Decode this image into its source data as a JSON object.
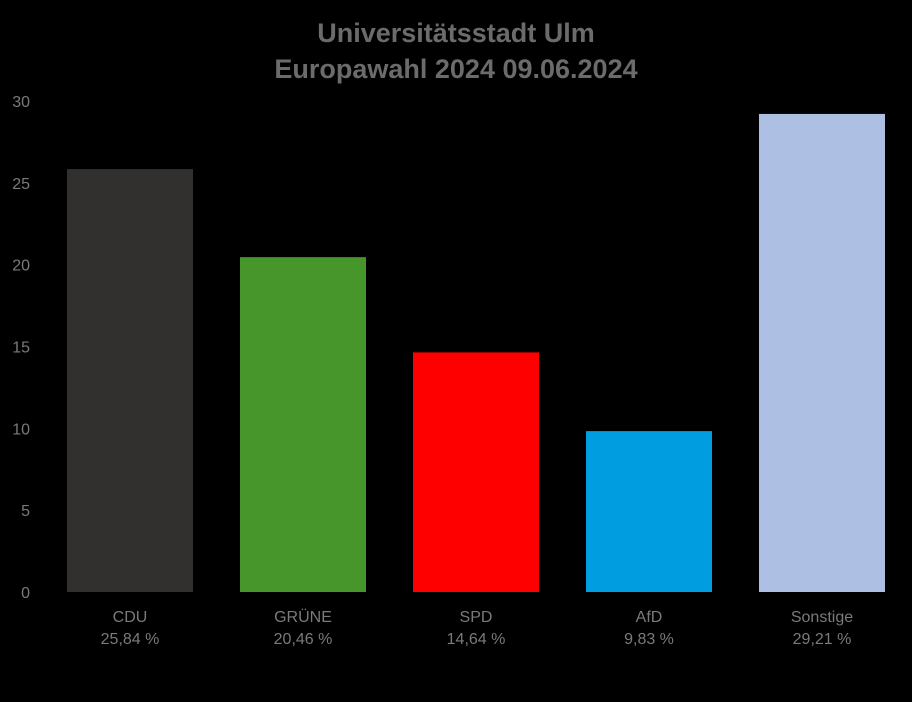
{
  "chart_data": {
    "type": "bar",
    "title": "Universitätsstadt Ulm",
    "subtitle": "Europawahl 2024 09.06.2024",
    "categories": [
      "CDU",
      "GRÜNE",
      "SPD",
      "AfD",
      "Sonstige"
    ],
    "value_labels": [
      "25,84 %",
      "20,46 %",
      "14,64 %",
      "9,83 %",
      "29,21 %"
    ],
    "values": [
      25.84,
      20.46,
      14.64,
      9.83,
      29.21
    ],
    "colors": [
      "#32302e",
      "#46962b",
      "#ff0000",
      "#009ee0",
      "#aebfe4"
    ],
    "ylim": [
      0,
      30
    ],
    "yticks": [
      "0",
      "5",
      "10",
      "15",
      "20",
      "25",
      "30"
    ],
    "xlabel": "",
    "ylabel": "",
    "grid": false,
    "legend": "none"
  }
}
